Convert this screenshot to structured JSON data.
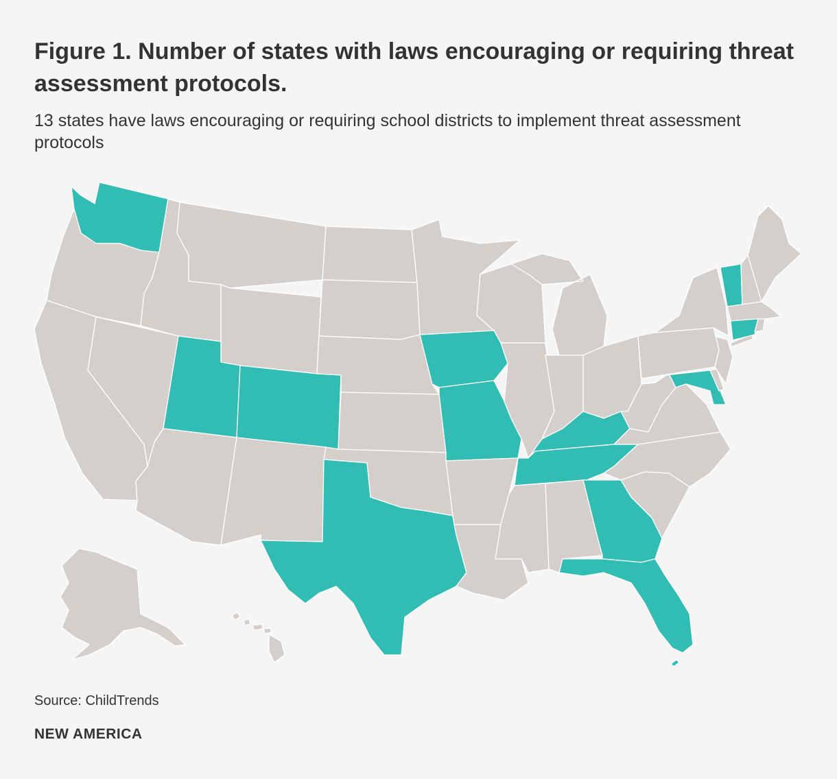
{
  "title": "Figure 1. Number of states with laws encouraging or requiring threat assessment protocols.",
  "subtitle": "13 states have laws encouraging or requiring school districts to implement threat assessment protocols",
  "source": "Source: ChildTrends",
  "brand": "NEW AMERICA",
  "colors": {
    "with_law": "#31bdb3",
    "without_law": "#d5cfcc",
    "background": "#f5f5f5",
    "border": "#ffffff"
  },
  "map_data": {
    "states_with_law": [
      "WA",
      "UT",
      "CO",
      "TX",
      "IA",
      "MO",
      "KY",
      "TN",
      "GA",
      "FL",
      "VT",
      "CT",
      "MD"
    ],
    "count": 13
  }
}
